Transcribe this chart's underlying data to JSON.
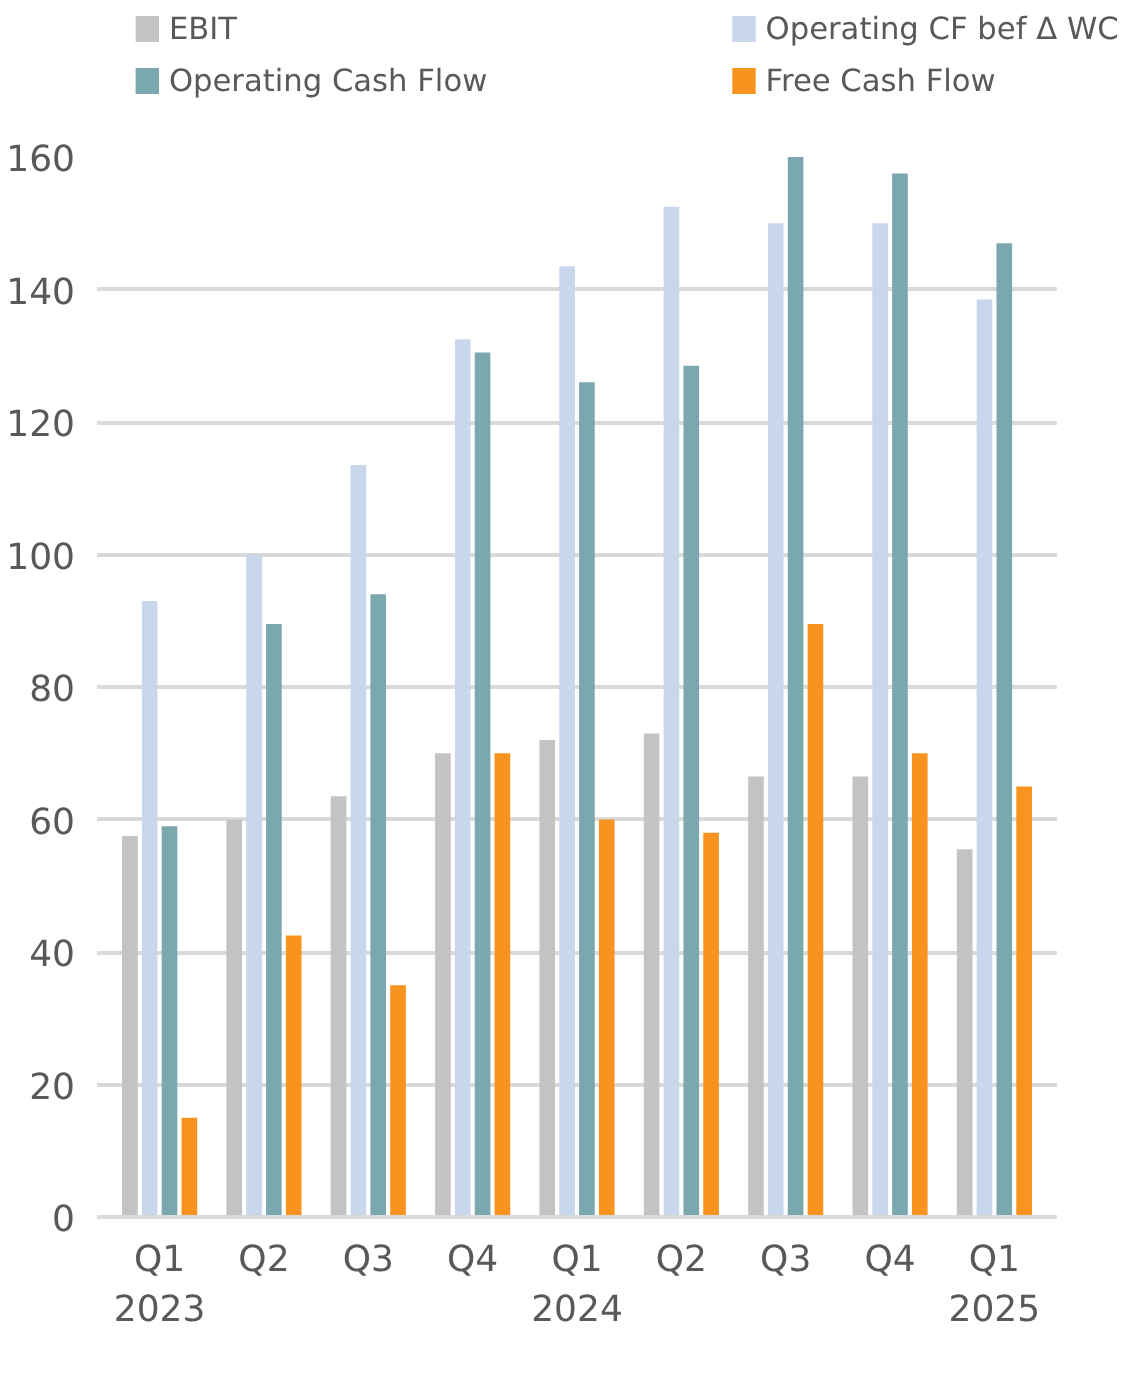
{
  "chart_data": {
    "type": "bar",
    "categories": [
      "Q1\n2023",
      "Q2",
      "Q3",
      "Q4",
      "Q1\n2024",
      "Q2",
      "Q3",
      "Q4",
      "Q1\n2025"
    ],
    "series": [
      {
        "name": "EBIT",
        "color": "#c3c3c3",
        "values": [
          57.5,
          60,
          63.5,
          70,
          72,
          73,
          66.5,
          66.5,
          55.5
        ]
      },
      {
        "name": "Operating CF bef Δ WC",
        "color": "#c9d7ec",
        "values": [
          93,
          100,
          113.5,
          132.5,
          143.5,
          152.5,
          150,
          150,
          138.5
        ]
      },
      {
        "name": "Operating Cash Flow",
        "color": "#7aa8ae",
        "values": [
          59,
          89.5,
          94,
          130.5,
          126,
          128.5,
          160,
          157.5,
          147
        ]
      },
      {
        "name": "Free Cash Flow",
        "color": "#f7931e",
        "values": [
          15,
          42.5,
          35,
          70,
          60,
          58,
          89.5,
          70,
          65
        ]
      }
    ],
    "ylim": [
      0,
      160
    ],
    "yticks": [
      0,
      20,
      40,
      60,
      80,
      100,
      120,
      140,
      160
    ],
    "grid": "y",
    "legend": "top"
  }
}
